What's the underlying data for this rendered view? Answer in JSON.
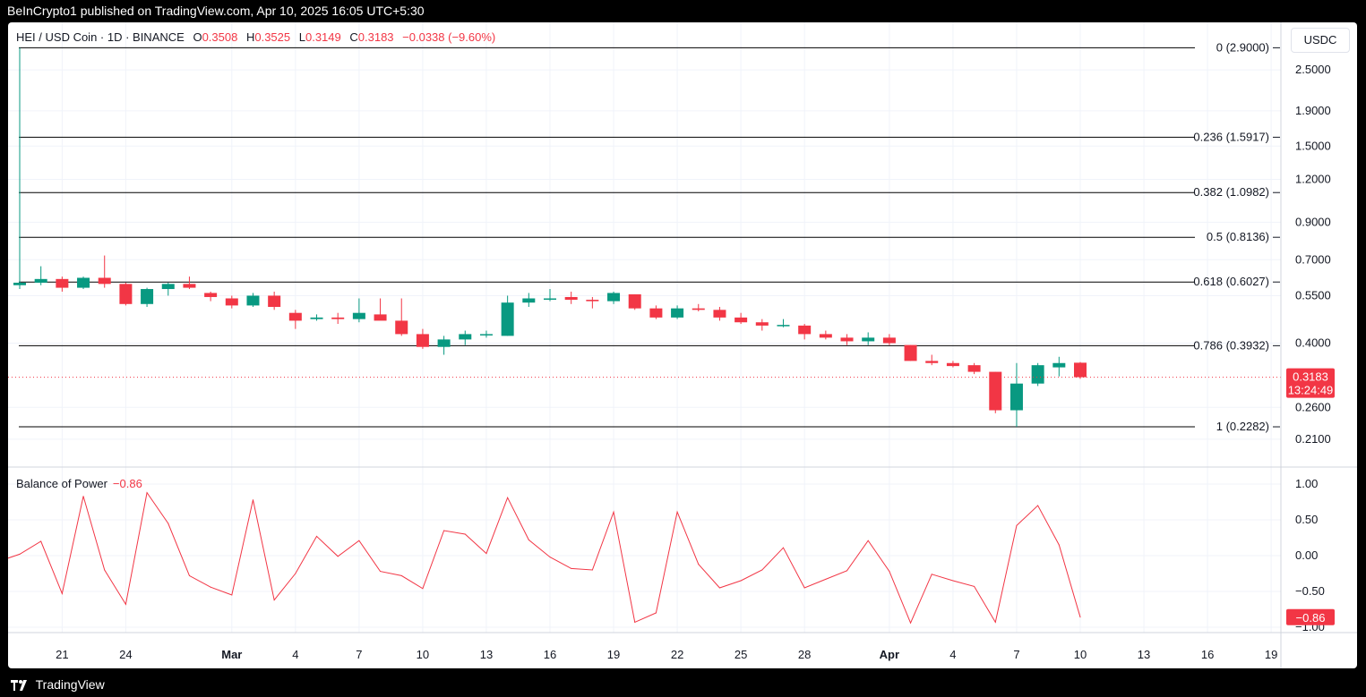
{
  "header": {
    "publisher_text": "BeInCrypto1 published on TradingView.com, Apr 10, 2025 16:05 UTC+5:30"
  },
  "footer": {
    "brand": "TradingView"
  },
  "symbol": {
    "title": "HEI / USD Coin · 1D · BINANCE",
    "open_label": "O",
    "open": "0.3508",
    "high_label": "H",
    "high": "0.3525",
    "low_label": "L",
    "low": "0.3149",
    "close_label": "C",
    "close": "0.3183",
    "change": "−0.0338 (−9.60%)",
    "currency": "USDC",
    "last_price": "0.3183",
    "countdown": "13:24:49"
  },
  "colors": {
    "up": "#089981",
    "down": "#f23645",
    "bop_line": "#f23645",
    "grid": "#f0f3fa",
    "text": "#131722"
  },
  "chart_data": [
    {
      "type": "candlestick",
      "scale": "log",
      "ylim": [
        0.185,
        3.05
      ],
      "y_ticks": [
        "2.5000",
        "1.9000",
        "1.5000",
        "1.2000",
        "0.9000",
        "0.7000",
        "0.5500",
        "0.4000",
        "0.2600",
        "0.2100"
      ],
      "x_ticks": [
        {
          "label": "21",
          "i": 2
        },
        {
          "label": "24",
          "i": 5
        },
        {
          "label": "Mar",
          "i": 10
        },
        {
          "label": "4",
          "i": 13
        },
        {
          "label": "7",
          "i": 16
        },
        {
          "label": "10",
          "i": 19
        },
        {
          "label": "13",
          "i": 22
        },
        {
          "label": "16",
          "i": 25
        },
        {
          "label": "19",
          "i": 28
        },
        {
          "label": "22",
          "i": 31
        },
        {
          "label": "25",
          "i": 34
        },
        {
          "label": "28",
          "i": 37
        },
        {
          "label": "Apr",
          "i": 41
        },
        {
          "label": "4",
          "i": 44
        },
        {
          "label": "7",
          "i": 47
        },
        {
          "label": "10",
          "i": 50
        },
        {
          "label": "13",
          "i": 53
        },
        {
          "label": "16",
          "i": 56
        },
        {
          "label": "19",
          "i": 59
        }
      ],
      "fib_levels": [
        {
          "label": "0 (2.9000)",
          "value": 2.9
        },
        {
          "label": "0.236 (1.5917)",
          "value": 1.5917
        },
        {
          "label": "0.382 (1.0982)",
          "value": 1.0982
        },
        {
          "label": "0.5 (0.8136)",
          "value": 0.8136
        },
        {
          "label": "0.618 (0.6027)",
          "value": 0.6027
        },
        {
          "label": "0.786 (0.3932)",
          "value": 0.3932
        },
        {
          "label": "1 (0.2282)",
          "value": 0.2282
        }
      ],
      "ohlc": [
        [
          0.59,
          2.9,
          0.575,
          0.6
        ],
        [
          0.6,
          0.67,
          0.59,
          0.615
        ],
        [
          0.615,
          0.625,
          0.565,
          0.58
        ],
        [
          0.58,
          0.625,
          0.575,
          0.62
        ],
        [
          0.62,
          0.72,
          0.58,
          0.595
        ],
        [
          0.595,
          0.6,
          0.515,
          0.52
        ],
        [
          0.52,
          0.58,
          0.51,
          0.575
        ],
        [
          0.575,
          0.6,
          0.55,
          0.595
        ],
        [
          0.595,
          0.625,
          0.575,
          0.58
        ],
        [
          0.56,
          0.565,
          0.53,
          0.545
        ],
        [
          0.54,
          0.55,
          0.505,
          0.515
        ],
        [
          0.515,
          0.56,
          0.51,
          0.55
        ],
        [
          0.55,
          0.565,
          0.5,
          0.51
        ],
        [
          0.49,
          0.5,
          0.44,
          0.465
        ],
        [
          0.47,
          0.485,
          0.465,
          0.475
        ],
        [
          0.475,
          0.49,
          0.455,
          0.47
        ],
        [
          0.47,
          0.54,
          0.46,
          0.49
        ],
        [
          0.485,
          0.54,
          0.47,
          0.465
        ],
        [
          0.465,
          0.54,
          0.42,
          0.425
        ],
        [
          0.425,
          0.44,
          0.385,
          0.39
        ],
        [
          0.39,
          0.42,
          0.37,
          0.41
        ],
        [
          0.41,
          0.435,
          0.395,
          0.425
        ],
        [
          0.425,
          0.435,
          0.415,
          0.425
        ],
        [
          0.42,
          0.55,
          0.42,
          0.525
        ],
        [
          0.525,
          0.56,
          0.51,
          0.54
        ],
        [
          0.54,
          0.575,
          0.53,
          0.54
        ],
        [
          0.545,
          0.565,
          0.52,
          0.535
        ],
        [
          0.535,
          0.545,
          0.505,
          0.53
        ],
        [
          0.53,
          0.565,
          0.52,
          0.56
        ],
        [
          0.555,
          0.555,
          0.5,
          0.505
        ],
        [
          0.505,
          0.515,
          0.47,
          0.475
        ],
        [
          0.475,
          0.515,
          0.47,
          0.505
        ],
        [
          0.505,
          0.52,
          0.495,
          0.5
        ],
        [
          0.5,
          0.51,
          0.465,
          0.475
        ],
        [
          0.475,
          0.49,
          0.455,
          0.46
        ],
        [
          0.46,
          0.47,
          0.435,
          0.45
        ],
        [
          0.45,
          0.47,
          0.445,
          0.452
        ],
        [
          0.45,
          0.455,
          0.41,
          0.425
        ],
        [
          0.425,
          0.435,
          0.41,
          0.415
        ],
        [
          0.415,
          0.425,
          0.395,
          0.405
        ],
        [
          0.405,
          0.43,
          0.395,
          0.415
        ],
        [
          0.415,
          0.425,
          0.395,
          0.4
        ],
        [
          0.395,
          0.395,
          0.355,
          0.355
        ],
        [
          0.355,
          0.37,
          0.345,
          0.35
        ],
        [
          0.35,
          0.355,
          0.34,
          0.343
        ],
        [
          0.345,
          0.35,
          0.325,
          0.33
        ],
        [
          0.33,
          0.33,
          0.25,
          0.255
        ],
        [
          0.255,
          0.35,
          0.2282,
          0.305
        ],
        [
          0.305,
          0.35,
          0.3,
          0.345
        ],
        [
          0.34,
          0.365,
          0.32,
          0.35
        ],
        [
          0.3508,
          0.3525,
          0.3149,
          0.3183
        ]
      ]
    },
    {
      "type": "line",
      "title": "Balance of Power",
      "last_value": "−0.86",
      "ylim": [
        -1.1,
        1.1
      ],
      "y_ticks": [
        "1.00",
        "0.50",
        "0.00",
        "−0.50",
        "−1.00"
      ],
      "x_offset": -1,
      "values": [
        -0.08,
        0.02,
        0.2,
        -0.53,
        0.83,
        -0.2,
        -0.68,
        0.88,
        0.45,
        -0.28,
        -0.44,
        -0.55,
        0.78,
        -0.62,
        -0.25,
        0.27,
        -0.01,
        0.21,
        -0.22,
        -0.28,
        -0.46,
        0.35,
        0.3,
        0.03,
        0.81,
        0.22,
        -0.02,
        -0.18,
        -0.2,
        0.61,
        -0.93,
        -0.8,
        0.61,
        -0.12,
        -0.45,
        -0.35,
        -0.2,
        0.11,
        -0.45,
        -0.33,
        -0.21,
        0.21,
        -0.22,
        -0.94,
        -0.26,
        -0.35,
        -0.43,
        -0.93,
        0.42,
        0.7,
        0.15,
        -0.86
      ]
    }
  ]
}
